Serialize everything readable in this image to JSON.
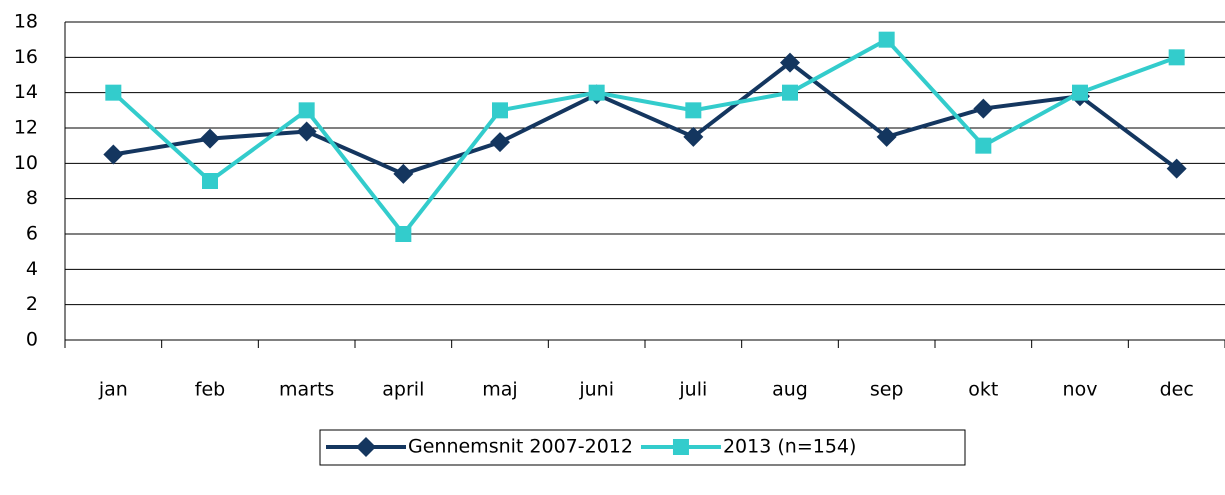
{
  "chart_data": {
    "type": "line",
    "categories": [
      "jan",
      "feb",
      "marts",
      "april",
      "maj",
      "juni",
      "juli",
      "aug",
      "sep",
      "okt",
      "nov",
      "dec"
    ],
    "series": [
      {
        "name": "Gennemsnit 2007-2012",
        "color": "#14365f",
        "marker": "diamond",
        "values": [
          10.5,
          11.4,
          11.8,
          9.4,
          11.2,
          13.9,
          11.5,
          15.7,
          11.5,
          13.1,
          13.8,
          9.7
        ]
      },
      {
        "name": "2013 (n=154)",
        "color": "#33cccc",
        "marker": "square",
        "values": [
          14,
          9,
          13,
          6,
          13,
          14,
          13,
          14,
          17,
          11,
          14,
          16
        ]
      }
    ],
    "ylim": [
      0,
      18
    ],
    "yticks": [
      0,
      2,
      4,
      6,
      8,
      10,
      12,
      14,
      16,
      18
    ],
    "grid": true,
    "legend": "bottom"
  }
}
